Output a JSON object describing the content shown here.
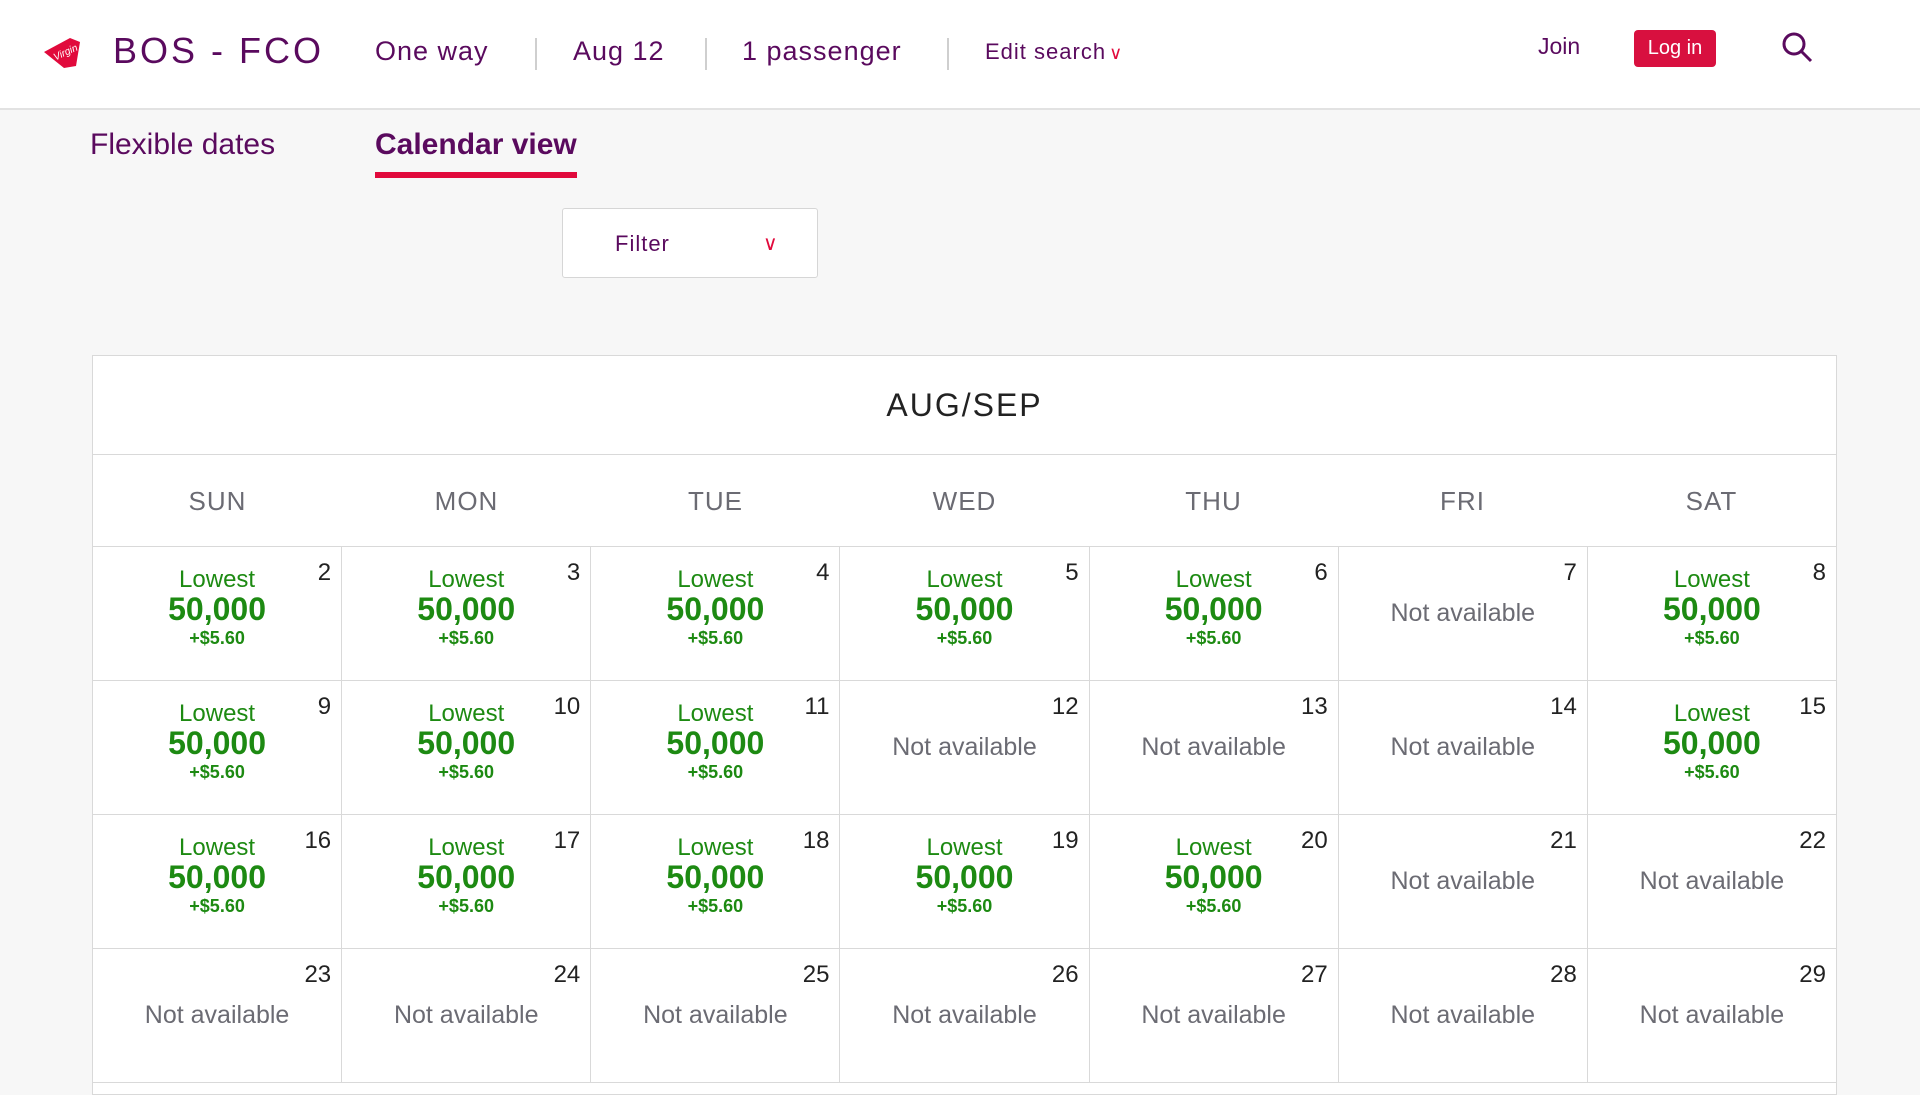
{
  "header": {
    "route": "BOS - FCO",
    "trip_type": "One way",
    "date": "Aug 12",
    "passengers": "1 passenger",
    "edit_search": "Edit search",
    "join": "Join",
    "login": "Log in"
  },
  "tabs": [
    {
      "label": "Flexible dates",
      "active": false
    },
    {
      "label": "Calendar view",
      "active": true
    }
  ],
  "filter": {
    "label": "Filter"
  },
  "calendar": {
    "month": "AUG/SEP",
    "weekdays": [
      "SUN",
      "MON",
      "TUE",
      "WED",
      "THU",
      "FRI",
      "SAT"
    ],
    "lowest_label": "Lowest",
    "na_label": "Not available",
    "weeks": [
      [
        {
          "day": "2",
          "price": "50,000",
          "tax": "+$5.60"
        },
        {
          "day": "3",
          "price": "50,000",
          "tax": "+$5.60"
        },
        {
          "day": "4",
          "price": "50,000",
          "tax": "+$5.60"
        },
        {
          "day": "5",
          "price": "50,000",
          "tax": "+$5.60"
        },
        {
          "day": "6",
          "price": "50,000",
          "tax": "+$5.60"
        },
        {
          "day": "7"
        },
        {
          "day": "8",
          "price": "50,000",
          "tax": "+$5.60"
        }
      ],
      [
        {
          "day": "9",
          "price": "50,000",
          "tax": "+$5.60"
        },
        {
          "day": "10",
          "price": "50,000",
          "tax": "+$5.60"
        },
        {
          "day": "11",
          "price": "50,000",
          "tax": "+$5.60"
        },
        {
          "day": "12"
        },
        {
          "day": "13"
        },
        {
          "day": "14"
        },
        {
          "day": "15",
          "price": "50,000",
          "tax": "+$5.60"
        }
      ],
      [
        {
          "day": "16",
          "price": "50,000",
          "tax": "+$5.60"
        },
        {
          "day": "17",
          "price": "50,000",
          "tax": "+$5.60"
        },
        {
          "day": "18",
          "price": "50,000",
          "tax": "+$5.60"
        },
        {
          "day": "19",
          "price": "50,000",
          "tax": "+$5.60"
        },
        {
          "day": "20",
          "price": "50,000",
          "tax": "+$5.60"
        },
        {
          "day": "21"
        },
        {
          "day": "22"
        }
      ],
      [
        {
          "day": "23"
        },
        {
          "day": "24"
        },
        {
          "day": "25"
        },
        {
          "day": "26"
        },
        {
          "day": "27"
        },
        {
          "day": "28"
        },
        {
          "day": "29"
        }
      ]
    ]
  },
  "colors": {
    "brand_purple": "#5a0a5e",
    "accent_red": "#e10a3c",
    "price_green": "#1d8a12"
  }
}
